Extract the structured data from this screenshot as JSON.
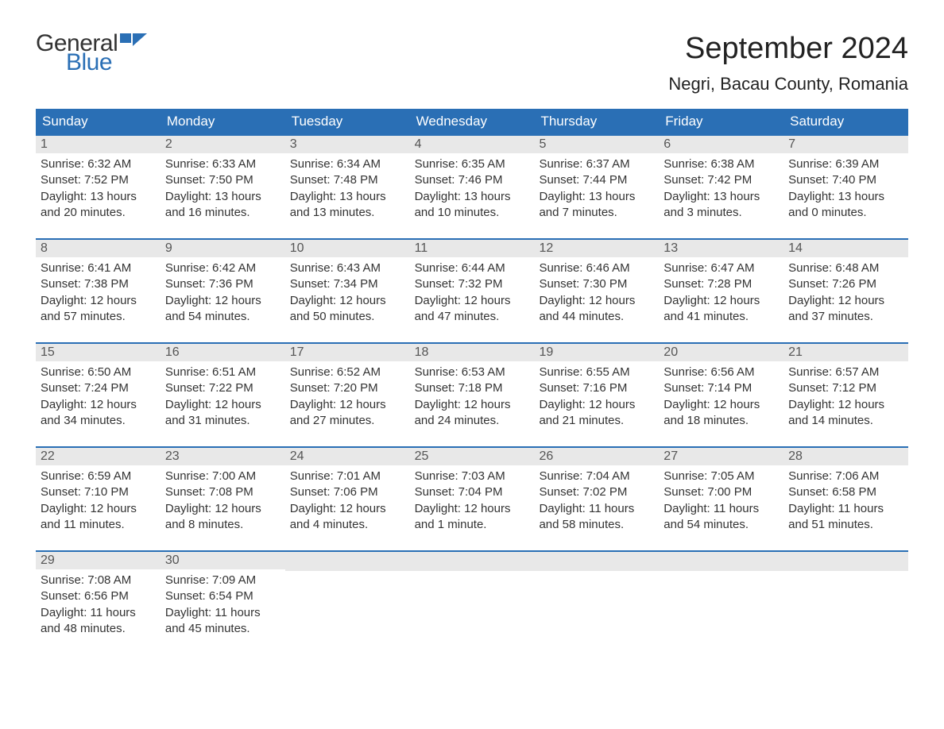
{
  "logo": {
    "text_top": "General",
    "text_bottom": "Blue",
    "top_color": "#333333",
    "bottom_color": "#2a6fb5",
    "flag_color": "#2a6fb5"
  },
  "title": "September 2024",
  "location": "Negri, Bacau County, Romania",
  "colors": {
    "header_bg": "#2a6fb5",
    "header_text": "#ffffff",
    "strip_bg": "#e8e8e8",
    "daynum_text": "#555555",
    "body_text": "#333333",
    "week_border": "#2a6fb5",
    "page_bg": "#ffffff"
  },
  "typography": {
    "title_fontsize": 38,
    "location_fontsize": 22,
    "weekday_fontsize": 17,
    "daynum_fontsize": 16,
    "body_fontsize": 15,
    "logo_fontsize": 30
  },
  "layout": {
    "columns": 7,
    "rows": 5,
    "aspect_ratio": "1188x918"
  },
  "weekdays": [
    "Sunday",
    "Monday",
    "Tuesday",
    "Wednesday",
    "Thursday",
    "Friday",
    "Saturday"
  ],
  "weeks": [
    [
      {
        "n": "1",
        "sr": "6:32 AM",
        "ss": "7:52 PM",
        "dl": "13 hours and 20 minutes."
      },
      {
        "n": "2",
        "sr": "6:33 AM",
        "ss": "7:50 PM",
        "dl": "13 hours and 16 minutes."
      },
      {
        "n": "3",
        "sr": "6:34 AM",
        "ss": "7:48 PM",
        "dl": "13 hours and 13 minutes."
      },
      {
        "n": "4",
        "sr": "6:35 AM",
        "ss": "7:46 PM",
        "dl": "13 hours and 10 minutes."
      },
      {
        "n": "5",
        "sr": "6:37 AM",
        "ss": "7:44 PM",
        "dl": "13 hours and 7 minutes."
      },
      {
        "n": "6",
        "sr": "6:38 AM",
        "ss": "7:42 PM",
        "dl": "13 hours and 3 minutes."
      },
      {
        "n": "7",
        "sr": "6:39 AM",
        "ss": "7:40 PM",
        "dl": "13 hours and 0 minutes."
      }
    ],
    [
      {
        "n": "8",
        "sr": "6:41 AM",
        "ss": "7:38 PM",
        "dl": "12 hours and 57 minutes."
      },
      {
        "n": "9",
        "sr": "6:42 AM",
        "ss": "7:36 PM",
        "dl": "12 hours and 54 minutes."
      },
      {
        "n": "10",
        "sr": "6:43 AM",
        "ss": "7:34 PM",
        "dl": "12 hours and 50 minutes."
      },
      {
        "n": "11",
        "sr": "6:44 AM",
        "ss": "7:32 PM",
        "dl": "12 hours and 47 minutes."
      },
      {
        "n": "12",
        "sr": "6:46 AM",
        "ss": "7:30 PM",
        "dl": "12 hours and 44 minutes."
      },
      {
        "n": "13",
        "sr": "6:47 AM",
        "ss": "7:28 PM",
        "dl": "12 hours and 41 minutes."
      },
      {
        "n": "14",
        "sr": "6:48 AM",
        "ss": "7:26 PM",
        "dl": "12 hours and 37 minutes."
      }
    ],
    [
      {
        "n": "15",
        "sr": "6:50 AM",
        "ss": "7:24 PM",
        "dl": "12 hours and 34 minutes."
      },
      {
        "n": "16",
        "sr": "6:51 AM",
        "ss": "7:22 PM",
        "dl": "12 hours and 31 minutes."
      },
      {
        "n": "17",
        "sr": "6:52 AM",
        "ss": "7:20 PM",
        "dl": "12 hours and 27 minutes."
      },
      {
        "n": "18",
        "sr": "6:53 AM",
        "ss": "7:18 PM",
        "dl": "12 hours and 24 minutes."
      },
      {
        "n": "19",
        "sr": "6:55 AM",
        "ss": "7:16 PM",
        "dl": "12 hours and 21 minutes."
      },
      {
        "n": "20",
        "sr": "6:56 AM",
        "ss": "7:14 PM",
        "dl": "12 hours and 18 minutes."
      },
      {
        "n": "21",
        "sr": "6:57 AM",
        "ss": "7:12 PM",
        "dl": "12 hours and 14 minutes."
      }
    ],
    [
      {
        "n": "22",
        "sr": "6:59 AM",
        "ss": "7:10 PM",
        "dl": "12 hours and 11 minutes."
      },
      {
        "n": "23",
        "sr": "7:00 AM",
        "ss": "7:08 PM",
        "dl": "12 hours and 8 minutes."
      },
      {
        "n": "24",
        "sr": "7:01 AM",
        "ss": "7:06 PM",
        "dl": "12 hours and 4 minutes."
      },
      {
        "n": "25",
        "sr": "7:03 AM",
        "ss": "7:04 PM",
        "dl": "12 hours and 1 minute."
      },
      {
        "n": "26",
        "sr": "7:04 AM",
        "ss": "7:02 PM",
        "dl": "11 hours and 58 minutes."
      },
      {
        "n": "27",
        "sr": "7:05 AM",
        "ss": "7:00 PM",
        "dl": "11 hours and 54 minutes."
      },
      {
        "n": "28",
        "sr": "7:06 AM",
        "ss": "6:58 PM",
        "dl": "11 hours and 51 minutes."
      }
    ],
    [
      {
        "n": "29",
        "sr": "7:08 AM",
        "ss": "6:56 PM",
        "dl": "11 hours and 48 minutes."
      },
      {
        "n": "30",
        "sr": "7:09 AM",
        "ss": "6:54 PM",
        "dl": "11 hours and 45 minutes."
      },
      null,
      null,
      null,
      null,
      null
    ]
  ],
  "labels": {
    "sunrise": "Sunrise:",
    "sunset": "Sunset:",
    "daylight": "Daylight:"
  }
}
